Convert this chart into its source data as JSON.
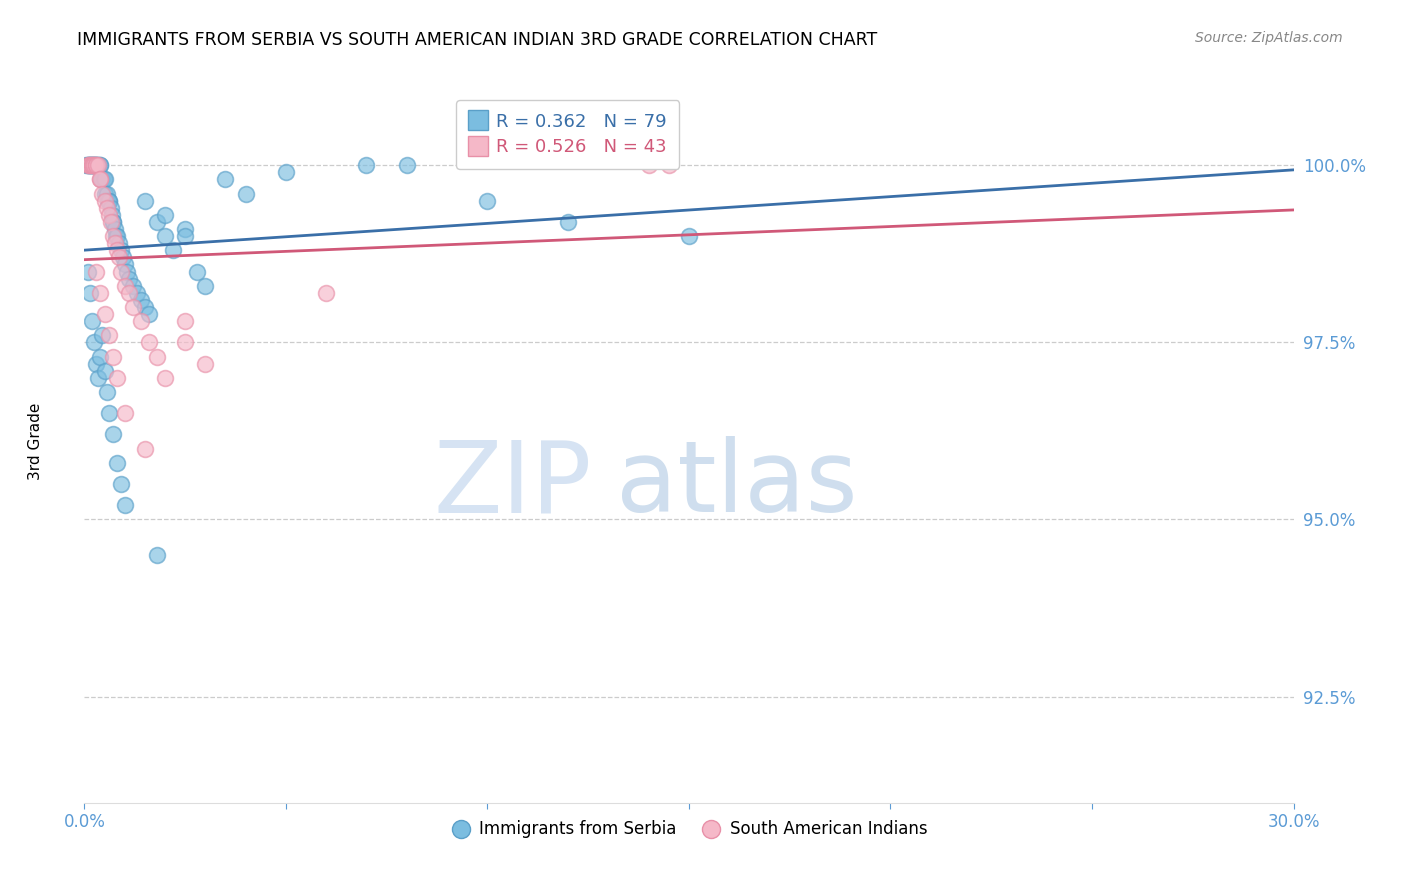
{
  "title": "IMMIGRANTS FROM SERBIA VS SOUTH AMERICAN INDIAN 3RD GRADE CORRELATION CHART",
  "source": "Source: ZipAtlas.com",
  "ylabel": "3rd Grade",
  "yticks": [
    92.5,
    95.0,
    97.5,
    100.0
  ],
  "ytick_labels": [
    "92.5%",
    "95.0%",
    "97.5%",
    "100.0%"
  ],
  "xmin": 0.0,
  "xmax": 30.0,
  "ymin": 91.0,
  "ymax": 101.2,
  "series1_label": "Immigrants from Serbia",
  "series1_R": "0.362",
  "series1_N": "79",
  "series1_color": "#7bbde0",
  "series1_edge_color": "#5a9fc8",
  "series1_line_color": "#3a6fa8",
  "series2_label": "South American Indians",
  "series2_R": "0.526",
  "series2_N": "43",
  "series2_color": "#f5b8c8",
  "series2_edge_color": "#e890a8",
  "series2_line_color": "#d05878",
  "watermark_zip": "ZIP",
  "watermark_atlas": "atlas",
  "watermark_color_zip": "#c5d8ee",
  "watermark_color_atlas": "#a8c4e0",
  "background_color": "#ffffff",
  "grid_color": "#cccccc",
  "tick_color": "#5b9bd5",
  "serbia_x": [
    0.05,
    0.08,
    0.1,
    0.12,
    0.14,
    0.15,
    0.16,
    0.18,
    0.2,
    0.22,
    0.24,
    0.25,
    0.26,
    0.28,
    0.3,
    0.32,
    0.35,
    0.38,
    0.4,
    0.42,
    0.45,
    0.48,
    0.5,
    0.52,
    0.55,
    0.58,
    0.6,
    0.62,
    0.65,
    0.68,
    0.7,
    0.72,
    0.75,
    0.78,
    0.8,
    0.85,
    0.9,
    0.95,
    1.0,
    1.05,
    1.1,
    1.2,
    1.3,
    1.4,
    1.5,
    1.6,
    1.8,
    2.0,
    2.2,
    2.5,
    2.8,
    3.0,
    0.1,
    0.15,
    0.2,
    0.25,
    0.3,
    0.35,
    0.4,
    0.45,
    0.5,
    0.55,
    0.6,
    0.7,
    0.8,
    0.9,
    1.0,
    1.5,
    2.0,
    2.5,
    1.8,
    3.5,
    4.0,
    5.0,
    7.0,
    8.0,
    10.0,
    12.0,
    15.0
  ],
  "serbia_y": [
    100.0,
    100.0,
    100.0,
    100.0,
    100.0,
    100.0,
    100.0,
    100.0,
    100.0,
    100.0,
    100.0,
    100.0,
    100.0,
    100.0,
    100.0,
    100.0,
    100.0,
    100.0,
    100.0,
    99.8,
    99.8,
    99.8,
    99.8,
    99.6,
    99.6,
    99.5,
    99.5,
    99.5,
    99.4,
    99.3,
    99.2,
    99.2,
    99.1,
    99.0,
    99.0,
    98.9,
    98.8,
    98.7,
    98.6,
    98.5,
    98.4,
    98.3,
    98.2,
    98.1,
    98.0,
    97.9,
    99.2,
    99.0,
    98.8,
    99.1,
    98.5,
    98.3,
    98.5,
    98.2,
    97.8,
    97.5,
    97.2,
    97.0,
    97.3,
    97.6,
    97.1,
    96.8,
    96.5,
    96.2,
    95.8,
    95.5,
    95.2,
    99.5,
    99.3,
    99.0,
    94.5,
    99.8,
    99.6,
    99.9,
    100.0,
    100.0,
    99.5,
    99.2,
    99.0
  ],
  "sai_x": [
    0.08,
    0.12,
    0.15,
    0.18,
    0.2,
    0.22,
    0.25,
    0.28,
    0.3,
    0.35,
    0.38,
    0.4,
    0.45,
    0.5,
    0.55,
    0.6,
    0.65,
    0.7,
    0.75,
    0.8,
    0.85,
    0.9,
    1.0,
    1.1,
    1.2,
    1.4,
    1.6,
    1.8,
    2.0,
    2.5,
    3.0,
    0.3,
    0.4,
    0.5,
    0.6,
    0.7,
    0.8,
    1.0,
    1.5,
    2.5,
    6.0,
    14.0,
    14.5
  ],
  "sai_y": [
    100.0,
    100.0,
    100.0,
    100.0,
    100.0,
    100.0,
    100.0,
    100.0,
    100.0,
    100.0,
    99.8,
    99.8,
    99.6,
    99.5,
    99.4,
    99.3,
    99.2,
    99.0,
    98.9,
    98.8,
    98.7,
    98.5,
    98.3,
    98.2,
    98.0,
    97.8,
    97.5,
    97.3,
    97.0,
    97.5,
    97.2,
    98.5,
    98.2,
    97.9,
    97.6,
    97.3,
    97.0,
    96.5,
    96.0,
    97.8,
    98.2,
    100.0,
    100.0
  ]
}
